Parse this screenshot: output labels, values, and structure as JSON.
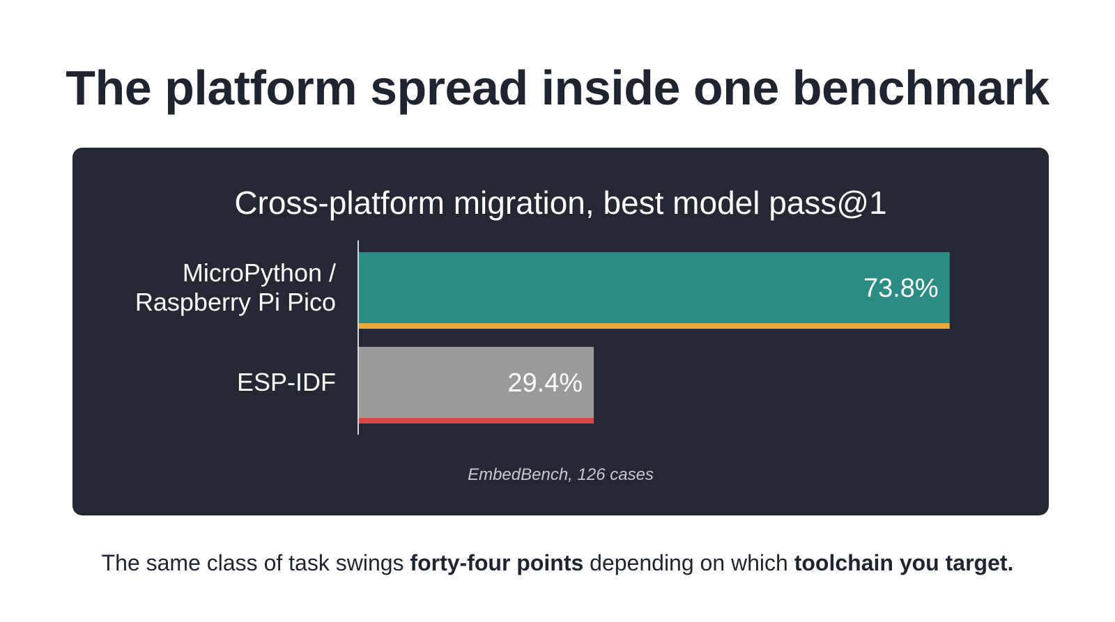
{
  "slide": {
    "title": "The platform spread inside one benchmark",
    "caption": {
      "part1": "The same class of task swings ",
      "bold1": "forty-four points",
      "part2": " depending on which ",
      "bold2": "toolchain you target."
    }
  },
  "chart_data": {
    "type": "bar",
    "orientation": "horizontal",
    "title": "Cross-platform migration, best model pass@1",
    "note": "EmbedBench, 126 cases",
    "xlim": [
      0,
      100
    ],
    "grid": false,
    "categories": [
      {
        "lines": [
          "MicroPython /",
          "Raspberry Pi Pico"
        ]
      },
      {
        "lines": [
          "ESP-IDF"
        ]
      }
    ],
    "values": [
      73.8,
      29.4
    ],
    "value_labels": [
      "73.8%",
      "29.4%"
    ],
    "colors": {
      "bar_fill": [
        "#2a8c82",
        "#9a9a9c"
      ],
      "bar_underline": [
        "#e8a83d",
        "#d94848"
      ],
      "axis_line": "#d7d9de",
      "card_background": "#232833",
      "text": "#ffffff"
    }
  }
}
